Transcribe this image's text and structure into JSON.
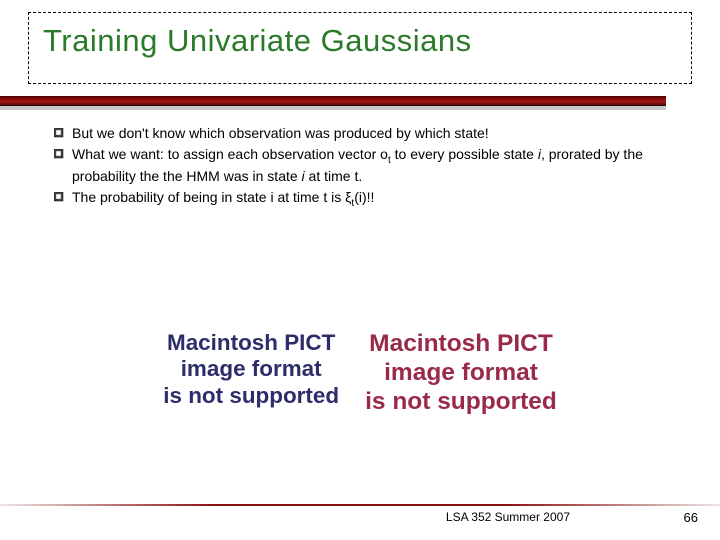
{
  "title": "Training Univariate Gaussians",
  "title_color": "#2a7a2a",
  "bar_color_top": "#4a0000",
  "bar_color_mid": "#a81818",
  "bullets": [
    {
      "html": "But we don't know which observation was produced by which state!"
    },
    {
      "html": "What we want: to assign each observation vector o<sub>t</sub> to every possible state <span class='ital'>i</span>, prorated by the probability the the HMM was in state <span class='ital'>i</span> at time t."
    },
    {
      "html": "The probability of being in state i at time t is ξ<sub>t</sub>(i)!!"
    }
  ],
  "placeholders": [
    {
      "line1": "Macintosh PICT",
      "line2": "image format",
      "line3": "is not supported",
      "color": "#2d2d6b",
      "fontsize": 22
    },
    {
      "line1": "Macintosh PICT",
      "line2": "image format",
      "line3": "is not supported",
      "color": "#9a2a4a",
      "fontsize": 24
    }
  ],
  "footer": {
    "text": "LSA 352 Summer 2007",
    "page": "66"
  }
}
